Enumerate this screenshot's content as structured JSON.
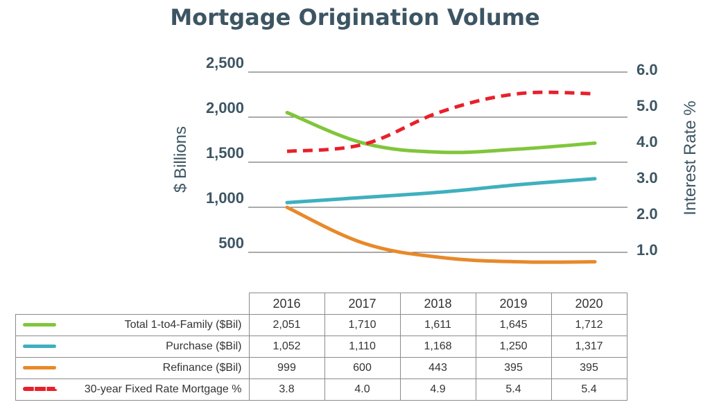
{
  "title": "Mortgage Origination Volume",
  "colors": {
    "total": "#80c63b",
    "purchase": "#3fb0bf",
    "refinance": "#e8892a",
    "rate": "#e8202a",
    "axis_text": "#3d5563",
    "grid": "#555555"
  },
  "chart_data": {
    "type": "line",
    "x": [
      "2016",
      "2017",
      "2018",
      "2019",
      "2020"
    ],
    "ylabel": "$ Billions",
    "y2label": "Interest Rate %",
    "ylim": [
      0,
      2500
    ],
    "y2lim": [
      0,
      6.0
    ],
    "yticks": [
      "500",
      "1,000",
      "1,500",
      "2,000",
      "2,500"
    ],
    "y2ticks": [
      "1.0",
      "2.0",
      "3.0",
      "4.0",
      "5.0",
      "6.0"
    ],
    "grid": true,
    "series": [
      {
        "name": "Total 1-to4-Family ($Bil)",
        "axis": "left",
        "style": "solid",
        "color": "#80c63b",
        "values": [
          2051,
          1710,
          1611,
          1645,
          1712
        ],
        "labels": [
          "2,051",
          "1,710",
          "1,611",
          "1,645",
          "1,712"
        ]
      },
      {
        "name": "Purchase ($Bil)",
        "axis": "left",
        "style": "solid",
        "color": "#3fb0bf",
        "values": [
          1052,
          1110,
          1168,
          1250,
          1317
        ],
        "labels": [
          "1,052",
          "1,110",
          "1,168",
          "1,250",
          "1,317"
        ]
      },
      {
        "name": "Refinance ($Bil)",
        "axis": "left",
        "style": "solid",
        "color": "#e8892a",
        "values": [
          999,
          600,
          443,
          395,
          395
        ],
        "labels": [
          "999",
          "600",
          "443",
          "395",
          "395"
        ]
      },
      {
        "name": "30-year Fixed Rate Mortgage %",
        "axis": "right",
        "style": "dashed",
        "color": "#e8202a",
        "values": [
          3.8,
          4.0,
          4.9,
          5.4,
          5.4
        ],
        "labels": [
          "3.8",
          "4.0",
          "4.9",
          "5.4",
          "5.4"
        ]
      }
    ]
  }
}
